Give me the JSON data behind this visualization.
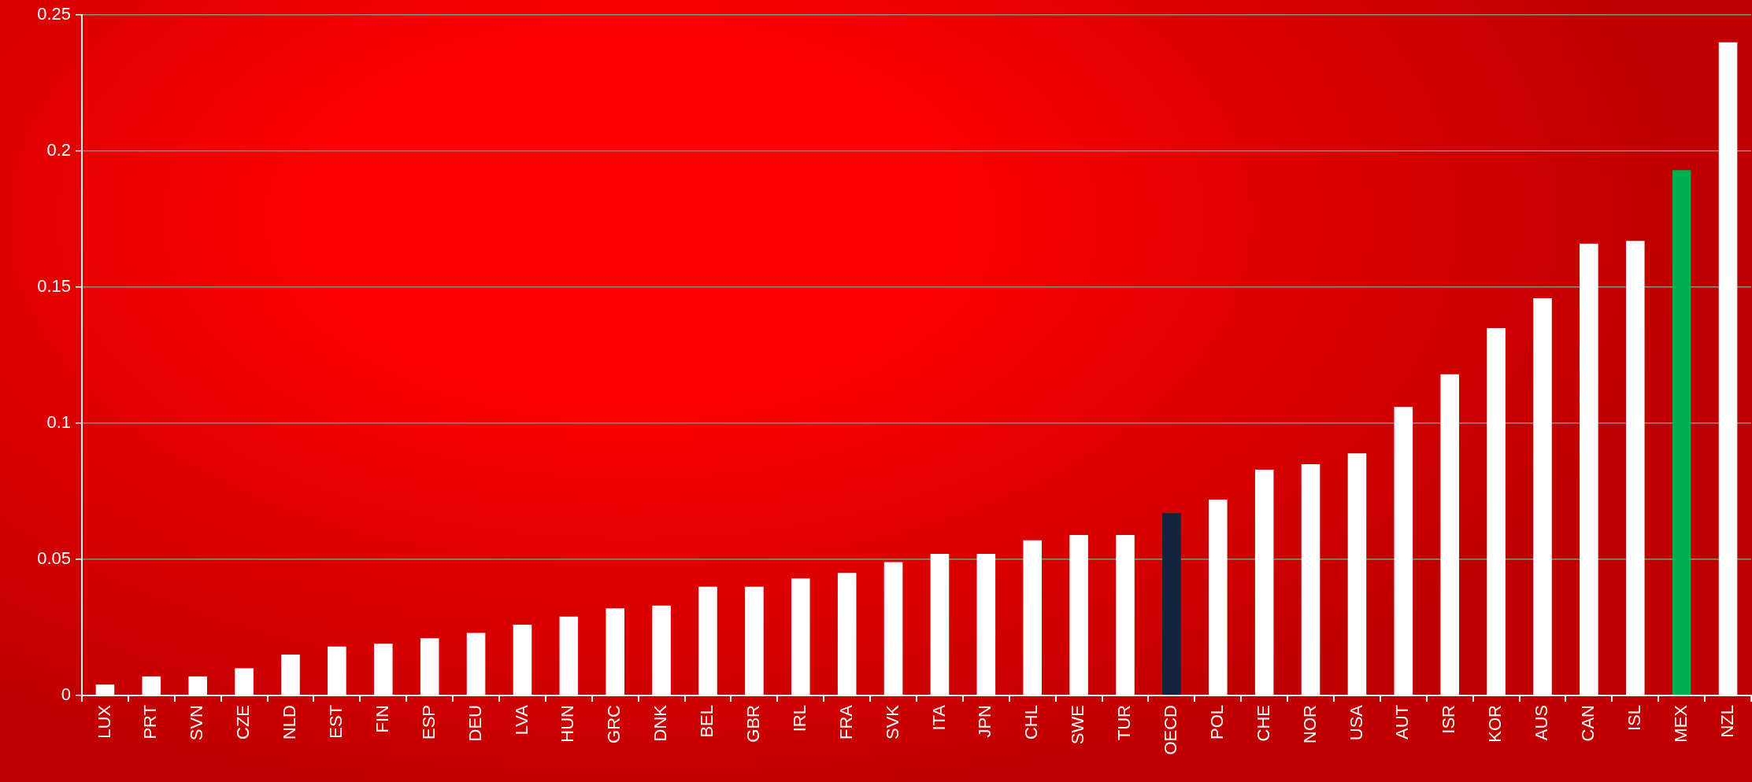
{
  "chart_data": {
    "type": "bar",
    "categories": [
      "LUX",
      "PRT",
      "SVN",
      "CZE",
      "NLD",
      "EST",
      "FIN",
      "ESP",
      "DEU",
      "LVA",
      "HUN",
      "GRC",
      "DNK",
      "BEL",
      "GBR",
      "IRL",
      "FRA",
      "SVK",
      "ITA",
      "JPN",
      "CHL",
      "SWE",
      "TUR",
      "OECD",
      "POL",
      "CHE",
      "NOR",
      "USA",
      "AUT",
      "ISR",
      "KOR",
      "AUS",
      "CAN",
      "ISL",
      "MEX",
      "NZL"
    ],
    "values": [
      0.004,
      0.007,
      0.007,
      0.01,
      0.015,
      0.018,
      0.019,
      0.021,
      0.023,
      0.026,
      0.029,
      0.032,
      0.033,
      0.04,
      0.04,
      0.043,
      0.045,
      0.049,
      0.052,
      0.052,
      0.057,
      0.059,
      0.059,
      0.067,
      0.072,
      0.083,
      0.085,
      0.089,
      0.106,
      0.118,
      0.135,
      0.146,
      0.166,
      0.167,
      0.193,
      0.24
    ],
    "colors": [
      "#ffffff",
      "#ffffff",
      "#ffffff",
      "#ffffff",
      "#ffffff",
      "#ffffff",
      "#ffffff",
      "#ffffff",
      "#ffffff",
      "#ffffff",
      "#ffffff",
      "#ffffff",
      "#ffffff",
      "#ffffff",
      "#ffffff",
      "#ffffff",
      "#ffffff",
      "#ffffff",
      "#ffffff",
      "#ffffff",
      "#ffffff",
      "#ffffff",
      "#ffffff",
      "#13243f",
      "#ffffff",
      "#ffffff",
      "#ffffff",
      "#ffffff",
      "#ffffff",
      "#ffffff",
      "#ffffff",
      "#ffffff",
      "#ffffff",
      "#ffffff",
      "#00b050",
      "#ffffff"
    ],
    "ylim": [
      0,
      0.25
    ],
    "yticks": [
      0,
      0.05,
      0.1,
      0.15,
      0.2,
      0.25
    ],
    "grid": "y"
  }
}
